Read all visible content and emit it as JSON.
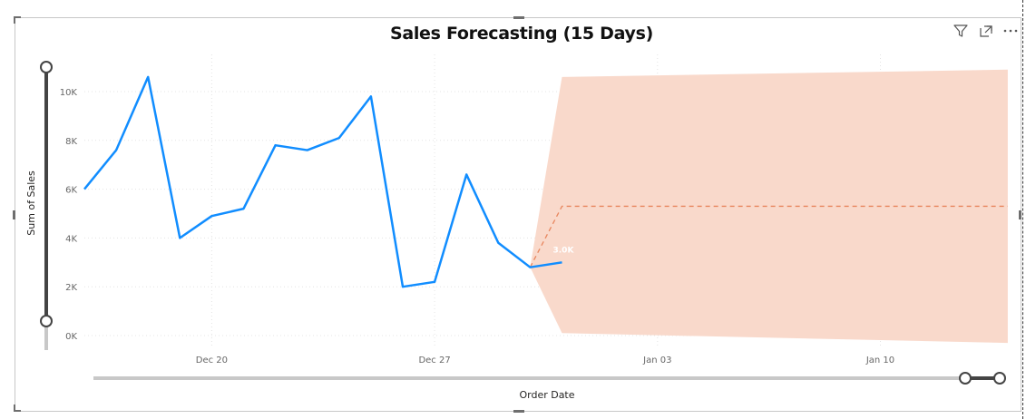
{
  "visual": {
    "title": "Sales Forecasting (15 Days)",
    "icons": [
      "filter-icon",
      "focus-mode-icon",
      "more-options-icon"
    ]
  },
  "chart_data": {
    "type": "line",
    "title": "Sales Forecasting (15 Days)",
    "xlabel": "Order Date",
    "ylabel": "Sum of Sales",
    "x_tick_labels": [
      "Dec 20",
      "Dec 27",
      "Jan 03",
      "Jan 10"
    ],
    "y_tick_labels": [
      "0K",
      "2K",
      "4K",
      "6K",
      "8K",
      "10K"
    ],
    "ylim": [
      -200,
      11000
    ],
    "grid": true,
    "series": [
      {
        "name": "Sales",
        "color": "#118DFF",
        "x": [
          "2020-12-16",
          "2020-12-17",
          "2020-12-18",
          "2020-12-19",
          "2020-12-20",
          "2020-12-21",
          "2020-12-22",
          "2020-12-23",
          "2020-12-24",
          "2020-12-25",
          "2020-12-26",
          "2020-12-27",
          "2020-12-28",
          "2020-12-29",
          "2020-12-30",
          "2020-12-31"
        ],
        "y": [
          6000,
          7600,
          10600,
          4000,
          4900,
          5200,
          7800,
          7600,
          8100,
          9800,
          2000,
          2200,
          6600,
          3800,
          2800,
          3000
        ]
      },
      {
        "name": "Forecast",
        "color": "#E8865E",
        "dashed": true,
        "x": [
          "2020-12-30",
          "2020-12-31",
          "2021-01-14"
        ],
        "y": [
          2800,
          5300,
          5300
        ]
      }
    ],
    "confidence_band": {
      "color": "#F9D9CB",
      "x": [
        "2020-12-30",
        "2020-12-31",
        "2021-01-14"
      ],
      "upper": [
        2800,
        10600,
        10900
      ],
      "lower": [
        2800,
        100,
        -300
      ]
    },
    "data_labels": [
      {
        "x": "2020-12-31",
        "y": 3000,
        "text": "3.0K"
      }
    ]
  }
}
